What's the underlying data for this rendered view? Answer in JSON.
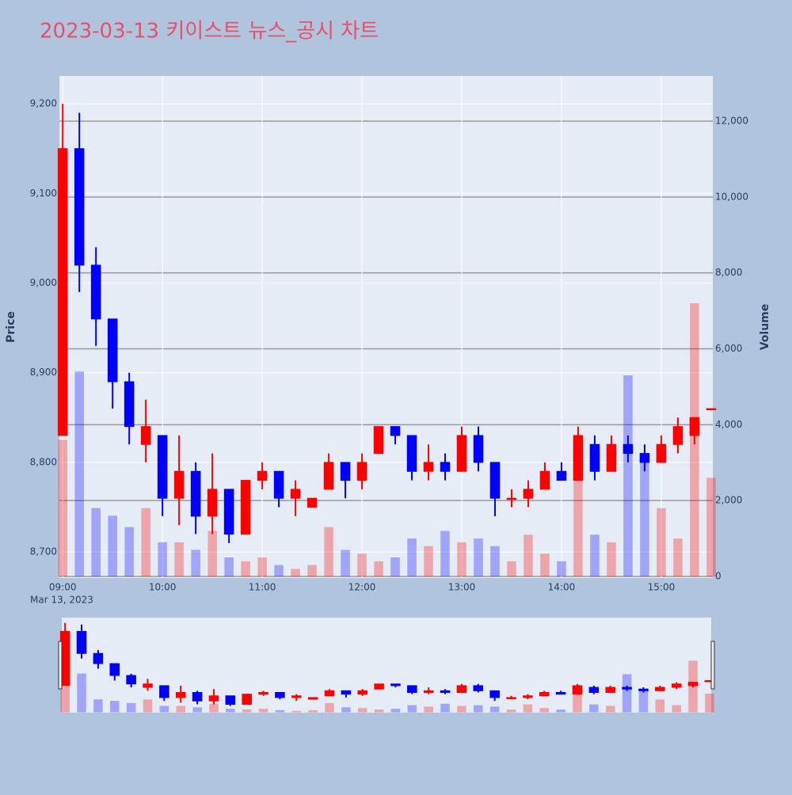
{
  "chart_data": {
    "type": "candlestick",
    "title": "2023-03-13 키이스트 뉴스_공시 차트",
    "x": [
      "09:00",
      "09:10",
      "09:20",
      "09:30",
      "09:40",
      "09:50",
      "10:00",
      "10:10",
      "10:20",
      "10:30",
      "10:40",
      "10:50",
      "11:00",
      "11:10",
      "11:20",
      "11:30",
      "11:40",
      "11:50",
      "12:00",
      "12:10",
      "12:20",
      "12:30",
      "12:40",
      "12:50",
      "13:00",
      "13:10",
      "13:20",
      "13:30",
      "13:40",
      "13:50",
      "14:00",
      "14:10",
      "14:20",
      "14:30",
      "14:40",
      "14:50",
      "15:00",
      "15:10",
      "15:20",
      "15:30"
    ],
    "open": [
      8830,
      9150,
      9020,
      8960,
      8890,
      8820,
      8830,
      8760,
      8790,
      8740,
      8770,
      8720,
      8780,
      8790,
      8760,
      8750,
      8770,
      8800,
      8780,
      8810,
      8840,
      8830,
      8790,
      8800,
      8790,
      8830,
      8800,
      8760,
      8760,
      8770,
      8790,
      8780,
      8820,
      8790,
      8820,
      8810,
      8800,
      8820,
      8830,
      8860
    ],
    "high": [
      9200,
      9190,
      9040,
      8960,
      8900,
      8870,
      8830,
      8830,
      8800,
      8810,
      8770,
      8780,
      8800,
      8790,
      8780,
      8760,
      8810,
      8800,
      8810,
      8840,
      8840,
      8830,
      8820,
      8810,
      8840,
      8840,
      8800,
      8770,
      8780,
      8800,
      8800,
      8840,
      8830,
      8830,
      8830,
      8820,
      8830,
      8850,
      8850,
      8860
    ],
    "low": [
      8830,
      8990,
      8930,
      8860,
      8820,
      8800,
      8740,
      8730,
      8720,
      8720,
      8710,
      8720,
      8770,
      8750,
      8740,
      8750,
      8770,
      8760,
      8770,
      8810,
      8820,
      8780,
      8780,
      8780,
      8790,
      8790,
      8740,
      8750,
      8750,
      8770,
      8780,
      8780,
      8780,
      8790,
      8800,
      8790,
      8800,
      8810,
      8820,
      8860
    ],
    "close": [
      9150,
      9020,
      8960,
      8890,
      8840,
      8840,
      8760,
      8790,
      8740,
      8770,
      8720,
      8780,
      8790,
      8760,
      8770,
      8760,
      8800,
      8780,
      8800,
      8840,
      8830,
      8790,
      8800,
      8790,
      8830,
      8800,
      8760,
      8760,
      8770,
      8790,
      8780,
      8830,
      8790,
      8820,
      8810,
      8800,
      8820,
      8840,
      8850,
      8860
    ],
    "volume": [
      3600,
      5400,
      1800,
      1600,
      1300,
      1800,
      900,
      900,
      700,
      1200,
      500,
      400,
      500,
      300,
      200,
      300,
      1300,
      700,
      600,
      400,
      500,
      1000,
      800,
      1200,
      900,
      1000,
      800,
      400,
      1100,
      600,
      400,
      3600,
      1100,
      900,
      5300,
      3100,
      1800,
      1000,
      7200,
      2600
    ],
    "increasing_color": "#ff0000",
    "decreasing_color": "#0000ff",
    "ylim": [
      8671,
      9231
    ],
    "yticks": [
      {
        "value": 8700,
        "label": "8,700"
      },
      {
        "value": 8800,
        "label": "8,800"
      },
      {
        "value": 8900,
        "label": "8,900"
      },
      {
        "value": 9000,
        "label": "9,000"
      },
      {
        "value": 9100,
        "label": "9,100"
      },
      {
        "value": 9200,
        "label": "9,200"
      }
    ],
    "y2lim": [
      -42,
      13190
    ],
    "y2ticks": [
      0,
      {
        "value": 2000,
        "label": "2,000"
      },
      {
        "value": 4000,
        "label": "4,000"
      },
      {
        "value": 6000,
        "label": "6,000"
      },
      {
        "value": 8000,
        "label": "8,000"
      },
      {
        "value": 10000,
        "label": "10,000"
      },
      {
        "value": 12000,
        "label": "12,000"
      }
    ],
    "xlim": [
      "08:58",
      "15:31"
    ],
    "xticks": [
      "09:00",
      "10:00",
      "11:00",
      "12:00",
      "13:00",
      "14:00",
      "15:00"
    ],
    "x_date_label": "Mar 13, 2023",
    "y_label": "Price",
    "y2_label": "Volume",
    "rangeslider": true
  }
}
